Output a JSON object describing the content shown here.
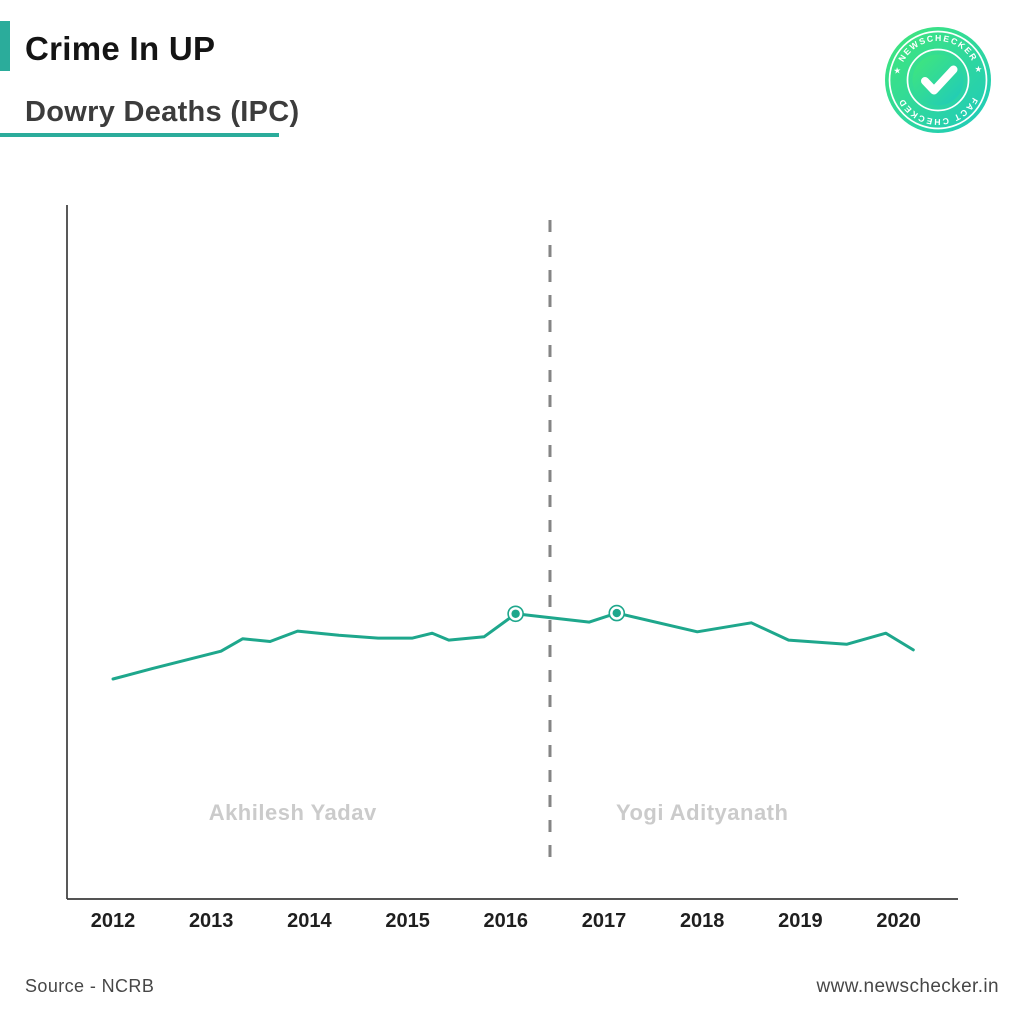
{
  "header": {
    "title": "Crime In UP",
    "subtitle": "Dowry Deaths (IPC)",
    "accent_color": "#2BAC9B"
  },
  "badge": {
    "top_arc_text": "★ NEWSCHECKER ★",
    "bottom_arc_text": "FACT CHECKED",
    "icon": "check-icon",
    "gradient": [
      "#42E878",
      "#1EC9BE"
    ]
  },
  "chart_data": {
    "type": "line",
    "title": "Crime In UP — Dowry Deaths (IPC)",
    "xlabel": "",
    "ylabel": "",
    "x_axis": {
      "start": 2012,
      "end": 2020,
      "ticks": [
        "2012",
        "2013",
        "2014",
        "2015",
        "2016",
        "2017",
        "2018",
        "2019",
        "2020"
      ]
    },
    "y_axis": {
      "tick_labels_shown": false,
      "unit": "relative level 0-1 of plot height"
    },
    "grid": false,
    "legend": false,
    "series": [
      {
        "name": "Dowry Deaths (IPC)",
        "color": "#1EA78C",
        "points": [
          [
            2012.0,
            0.317
          ],
          [
            2012.4,
            0.332
          ],
          [
            2013.1,
            0.357
          ],
          [
            2013.32,
            0.375
          ],
          [
            2013.6,
            0.371
          ],
          [
            2013.88,
            0.386
          ],
          [
            2014.3,
            0.38
          ],
          [
            2014.7,
            0.376
          ],
          [
            2015.05,
            0.376
          ],
          [
            2015.25,
            0.383
          ],
          [
            2015.42,
            0.373
          ],
          [
            2015.78,
            0.378
          ],
          [
            2016.1,
            0.411
          ],
          [
            2016.85,
            0.399
          ],
          [
            2017.13,
            0.412
          ],
          [
            2017.95,
            0.385
          ],
          [
            2018.5,
            0.398
          ],
          [
            2018.88,
            0.373
          ],
          [
            2019.47,
            0.367
          ],
          [
            2019.87,
            0.383
          ],
          [
            2020.15,
            0.359
          ]
        ]
      }
    ],
    "highlighted_points": [
      [
        2016.1,
        0.411
      ],
      [
        2017.13,
        0.412
      ]
    ],
    "divider": {
      "x": 2016.45,
      "style": "dashed",
      "color": "#858585"
    },
    "era_labels": [
      {
        "text": "Akhilesh Yadav",
        "x": 2013.83
      },
      {
        "text": "Yogi Adityanath",
        "x": 2018.0
      }
    ],
    "era_label_color": "#cbcbcb",
    "axis_color": "#3c3c3c",
    "tick_label_color": "#1f1f1f"
  },
  "footer": {
    "source": "Source - NCRB",
    "website": "www.newschecker.in"
  }
}
